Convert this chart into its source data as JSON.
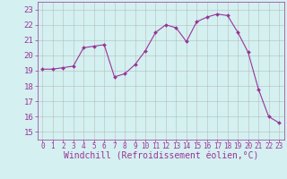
{
  "x": [
    0,
    1,
    2,
    3,
    4,
    5,
    6,
    7,
    8,
    9,
    10,
    11,
    12,
    13,
    14,
    15,
    16,
    17,
    18,
    19,
    20,
    21,
    22,
    23
  ],
  "y": [
    19.1,
    19.1,
    19.2,
    19.3,
    20.5,
    20.6,
    20.7,
    18.6,
    18.8,
    19.4,
    20.3,
    21.5,
    22.0,
    21.8,
    20.9,
    22.2,
    22.5,
    22.7,
    22.6,
    21.5,
    20.2,
    17.8,
    16.0,
    15.6
  ],
  "line_color": "#993399",
  "marker_color": "#993399",
  "bg_color": "#d4f0f0",
  "grid_color": "#b0b0b0",
  "xlabel": "Windchill (Refroidissement éolien,°C)",
  "ylabel_ticks": [
    15,
    16,
    17,
    18,
    19,
    20,
    21,
    22,
    23
  ],
  "xticks": [
    0,
    1,
    2,
    3,
    4,
    5,
    6,
    7,
    8,
    9,
    10,
    11,
    12,
    13,
    14,
    15,
    16,
    17,
    18,
    19,
    20,
    21,
    22,
    23
  ],
  "ylim": [
    14.5,
    23.5
  ],
  "xlim": [
    -0.5,
    23.5
  ],
  "label_color": "#993399",
  "tick_color": "#993399",
  "fontsize_xlabel": 7.0,
  "fontsize_ytick": 6.5,
  "fontsize_xtick": 5.5
}
